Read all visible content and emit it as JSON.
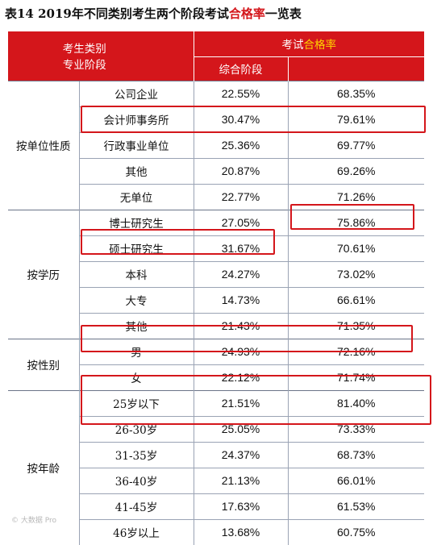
{
  "title": {
    "prefix": "表14  2019年不同类别考生两个阶段考试",
    "highlight": "合格率",
    "suffix": "一览表"
  },
  "header": {
    "category_line1": "考生类别",
    "category_line2": "专业阶段",
    "exam_prefix": "考试",
    "exam_highlight": "合格率",
    "col_comprehensive": "综合阶段",
    "col_professional": ""
  },
  "groups": [
    {
      "label": "按单位性质",
      "rows": [
        {
          "category": "公司企业",
          "comprehensive": "22.55%",
          "professional": "68.35%"
        },
        {
          "category": "会计师事务所",
          "comprehensive": "30.47%",
          "professional": "79.61%"
        },
        {
          "category": "行政事业单位",
          "comprehensive": "25.36%",
          "professional": "69.77%"
        },
        {
          "category": "其他",
          "comprehensive": "20.87%",
          "professional": "69.26%"
        },
        {
          "category": "无单位",
          "comprehensive": "22.77%",
          "professional": "71.26%"
        }
      ]
    },
    {
      "label": "按学历",
      "rows": [
        {
          "category": "博士研究生",
          "comprehensive": "27.05%",
          "professional": "75.86%"
        },
        {
          "category": "硕士研究生",
          "comprehensive": "31.67%",
          "professional": "70.61%"
        },
        {
          "category": "本科",
          "comprehensive": "24.27%",
          "professional": "73.02%"
        },
        {
          "category": "大专",
          "comprehensive": "14.73%",
          "professional": "66.61%"
        },
        {
          "category": "其他",
          "comprehensive": "21.43%",
          "professional": "71.35%"
        }
      ]
    },
    {
      "label": "按性别",
      "rows": [
        {
          "category": "男",
          "comprehensive": "24.93%",
          "professional": "72.16%"
        },
        {
          "category": "女",
          "comprehensive": "22.12%",
          "professional": "71.74%"
        }
      ]
    },
    {
      "label": "按年龄",
      "rows": [
        {
          "category": "25岁以下",
          "comprehensive": "21.51%",
          "professional": "81.40%"
        },
        {
          "category": "26-30岁",
          "comprehensive": "25.05%",
          "professional": "73.33%"
        },
        {
          "category": "31-35岁",
          "comprehensive": "24.37%",
          "professional": "68.73%"
        },
        {
          "category": "36-40岁",
          "comprehensive": "21.13%",
          "professional": "66.01%"
        },
        {
          "category": "41-45岁",
          "comprehensive": "17.63%",
          "professional": "61.53%"
        },
        {
          "category": "46岁以上",
          "comprehensive": "13.68%",
          "professional": "60.75%"
        }
      ]
    }
  ],
  "watermark": "© 大数据 Pro"
}
